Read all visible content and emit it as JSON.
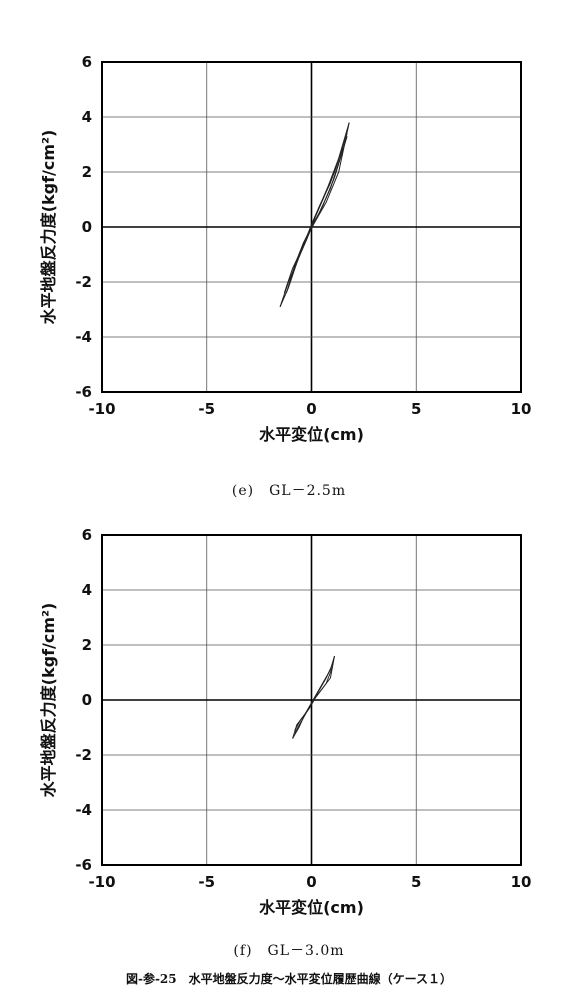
{
  "chart_data": [
    {
      "type": "line",
      "panel_caption": "(e)　GL－2.5m",
      "xlabel": "水平変位(cm)",
      "ylabel": "水平地盤反力度(kgf/cm²)",
      "xlim": [
        -10,
        10
      ],
      "ylim": [
        -6,
        6
      ],
      "xticks": [
        "-10",
        "-5",
        "0",
        "5",
        "10"
      ],
      "yticks": [
        "-6",
        "-4",
        "-2",
        "0",
        "2",
        "4",
        "6"
      ],
      "grid": true,
      "series": [
        {
          "x": [
            -1.5,
            -1.1,
            -0.6,
            -0.1,
            0.3,
            0.8,
            1.3,
            1.8
          ],
          "y": [
            -2.9,
            -2.0,
            -1.1,
            -0.2,
            0.6,
            1.5,
            2.5,
            3.8
          ]
        },
        {
          "x": [
            1.8,
            1.3,
            0.7,
            0.1,
            -0.3,
            -0.7,
            -1.1,
            -1.5
          ],
          "y": [
            3.8,
            2.0,
            0.9,
            0.1,
            -0.5,
            -1.3,
            -2.2,
            -2.9
          ]
        },
        {
          "x": [
            -1.3,
            -0.9,
            -0.4,
            0.0,
            0.4,
            0.9,
            1.4,
            1.7
          ],
          "y": [
            -2.4,
            -1.5,
            -0.7,
            0.1,
            0.8,
            1.6,
            2.7,
            3.4
          ]
        },
        {
          "x": [
            1.7,
            1.1,
            0.5,
            0.0,
            -0.4,
            -0.8,
            -1.2
          ],
          "y": [
            3.3,
            1.8,
            0.7,
            0.0,
            -0.6,
            -1.4,
            -2.4
          ]
        },
        {
          "x": [
            -1.0,
            -0.6,
            -0.2,
            0.2,
            0.6,
            1.1,
            1.5
          ],
          "y": [
            -1.9,
            -1.1,
            -0.4,
            0.4,
            1.1,
            2.0,
            2.9
          ]
        },
        {
          "x": [
            1.5,
            0.9,
            0.3,
            -0.2,
            -0.6,
            -1.0
          ],
          "y": [
            2.8,
            1.4,
            0.4,
            -0.3,
            -1.0,
            -1.9
          ]
        }
      ]
    },
    {
      "type": "line",
      "panel_caption": "(f)　GL－3.0m",
      "xlabel": "水平変位(cm)",
      "ylabel": "水平地盤反力度(kgf/cm²)",
      "xlim": [
        -10,
        10
      ],
      "ylim": [
        -6,
        6
      ],
      "xticks": [
        "-10",
        "-5",
        "0",
        "5",
        "10"
      ],
      "yticks": [
        "-6",
        "-4",
        "-2",
        "0",
        "2",
        "4",
        "6"
      ],
      "grid": true,
      "series": [
        {
          "x": [
            -0.9,
            -0.6,
            -0.3,
            0.0,
            0.3,
            0.6,
            0.9,
            1.1
          ],
          "y": [
            -1.4,
            -1.0,
            -0.5,
            -0.1,
            0.3,
            0.7,
            1.1,
            1.6
          ]
        },
        {
          "x": [
            1.1,
            0.9,
            0.5,
            0.2,
            -0.1,
            -0.4,
            -0.7,
            -0.9
          ],
          "y": [
            1.6,
            0.8,
            0.4,
            0.1,
            -0.3,
            -0.6,
            -0.9,
            -1.4
          ]
        },
        {
          "x": [
            -0.8,
            -0.5,
            -0.2,
            0.1,
            0.4,
            0.7,
            1.0
          ],
          "y": [
            -1.2,
            -0.8,
            -0.4,
            0.0,
            0.4,
            0.8,
            1.3
          ]
        },
        {
          "x": [
            1.0,
            0.7,
            0.4,
            0.1,
            -0.2,
            -0.5,
            -0.8
          ],
          "y": [
            1.2,
            0.6,
            0.3,
            0.0,
            -0.4,
            -0.7,
            -1.1
          ]
        }
      ]
    }
  ],
  "figure_caption": "図-参-25　水平地盤反力度～水平変位履歴曲線（ケース１）",
  "colors": {
    "line": "#222222",
    "grid": "#555555",
    "axis": "#000000"
  }
}
